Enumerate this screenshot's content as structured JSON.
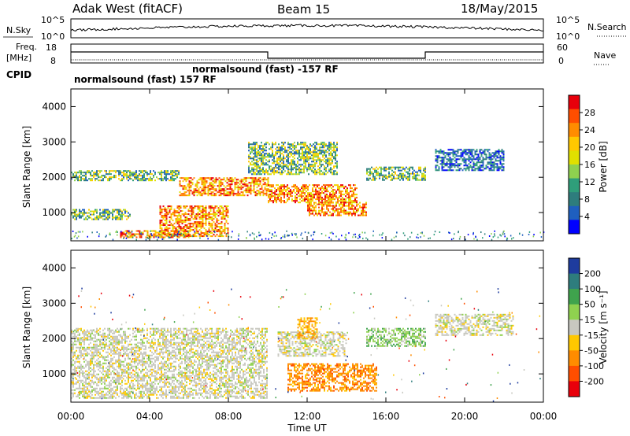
{
  "header": {
    "station": "Adak West (fitACF)",
    "beam": "Beam 15",
    "date": "18/May/2015"
  },
  "top_panels": {
    "nsky_label": "N.Sky",
    "nsky_tick_top": "10^5",
    "nsky_tick_bottom": "10^0",
    "nsearch_label": "N.Search",
    "nsearch_tick_top": "10^5",
    "nsearch_tick_bottom": "10^0",
    "freq_label_line1": "Freq.",
    "freq_label_line2": "[MHz]",
    "freq_tick_top": "18",
    "freq_tick_bottom": "8",
    "nave_label": "Nave",
    "nave_tick_top": "60",
    "nave_tick_bottom": "0",
    "cpid_label": "CPID",
    "cpid_mode_1": "normalsound (fast) 157 RF",
    "cpid_mode_2": "normalsound (fast) -157 RF"
  },
  "colorbars": {
    "power": {
      "label": "Power [dB]",
      "ticks": [
        "28",
        "24",
        "20",
        "16",
        "12",
        "8",
        "4"
      ],
      "colors": [
        "#e8000b",
        "#ff4e00",
        "#ff8c00",
        "#ffc800",
        "#e0e000",
        "#8fd14f",
        "#2f9e7a",
        "#2e7d7d",
        "#1f5fbf",
        "#0000ff"
      ]
    },
    "velocity": {
      "label": "Velocity [m s⁻¹]",
      "ticks": [
        "200",
        "100",
        "50",
        "15",
        "-15",
        "-50",
        "-100",
        "-200"
      ],
      "colors": [
        "#1e3c9e",
        "#2e7d7d",
        "#3fa34d",
        "#8fd14f",
        "#c8c8c0",
        "#ffc800",
        "#ff8c00",
        "#ff4e00",
        "#e8000b"
      ]
    }
  },
  "chart_data": [
    {
      "type": "heatmap",
      "panel": "power",
      "ylabel": "Slant Range [km]",
      "xlabel": "",
      "yticks": [
        "1000",
        "2000",
        "3000",
        "4000"
      ],
      "ylim": [
        200,
        4500
      ],
      "xlim": [
        0,
        24
      ],
      "grid": false,
      "features": [
        {
          "t_start": 0.0,
          "t_end": 5.5,
          "range_start": 1900,
          "range_end": 2200,
          "level": "medium"
        },
        {
          "t_start": 2.5,
          "t_end": 6.0,
          "range_start": 300,
          "range_end": 500,
          "level": "high"
        },
        {
          "t_start": 4.5,
          "t_end": 8.0,
          "range_start": 350,
          "range_end": 1200,
          "level": "high"
        },
        {
          "t_start": 5.5,
          "t_end": 10.0,
          "range_start": 1500,
          "range_end": 2000,
          "level": "high"
        },
        {
          "t_start": 10.0,
          "t_end": 14.5,
          "range_start": 1300,
          "range_end": 1800,
          "level": "high"
        },
        {
          "t_start": 12.0,
          "t_end": 15.0,
          "range_start": 900,
          "range_end": 1300,
          "level": "high"
        },
        {
          "t_start": 9.0,
          "t_end": 13.5,
          "range_start": 2100,
          "range_end": 3000,
          "level": "medium"
        },
        {
          "t_start": 15.0,
          "t_end": 18.0,
          "range_start": 1900,
          "range_end": 2300,
          "level": "medium"
        },
        {
          "t_start": 18.5,
          "t_end": 22.0,
          "range_start": 2200,
          "range_end": 2800,
          "level": "low"
        },
        {
          "t_start": 0.0,
          "t_end": 3.0,
          "range_start": 800,
          "range_end": 1100,
          "level": "medium"
        }
      ]
    },
    {
      "type": "heatmap",
      "panel": "velocity",
      "ylabel": "Slant Range [km]",
      "xlabel": "Time UT",
      "yticks": [
        "1000",
        "2000",
        "3000",
        "4000"
      ],
      "xticks": [
        "00:00",
        "04:00",
        "08:00",
        "12:00",
        "16:00",
        "20:00",
        "00:00"
      ],
      "ylim": [
        200,
        4500
      ],
      "xlim": [
        0,
        24
      ],
      "grid": false,
      "features": [
        {
          "t_start": 0.0,
          "t_end": 10.0,
          "range_start": 300,
          "range_end": 2300,
          "velocity": "near-zero"
        },
        {
          "t_start": 10.5,
          "t_end": 14.0,
          "range_start": 1500,
          "range_end": 2200,
          "velocity": "near-zero"
        },
        {
          "t_start": 11.0,
          "t_end": 15.5,
          "range_start": 500,
          "range_end": 1300,
          "velocity": "-50 to -100"
        },
        {
          "t_start": 11.5,
          "t_end": 12.5,
          "range_start": 2000,
          "range_end": 2600,
          "velocity": "-50"
        },
        {
          "t_start": 15.0,
          "t_end": 18.0,
          "range_start": 1800,
          "range_end": 2300,
          "velocity": "15 to 50"
        },
        {
          "t_start": 18.5,
          "t_end": 22.5,
          "range_start": 2100,
          "range_end": 2700,
          "velocity": "near-zero"
        }
      ]
    }
  ]
}
